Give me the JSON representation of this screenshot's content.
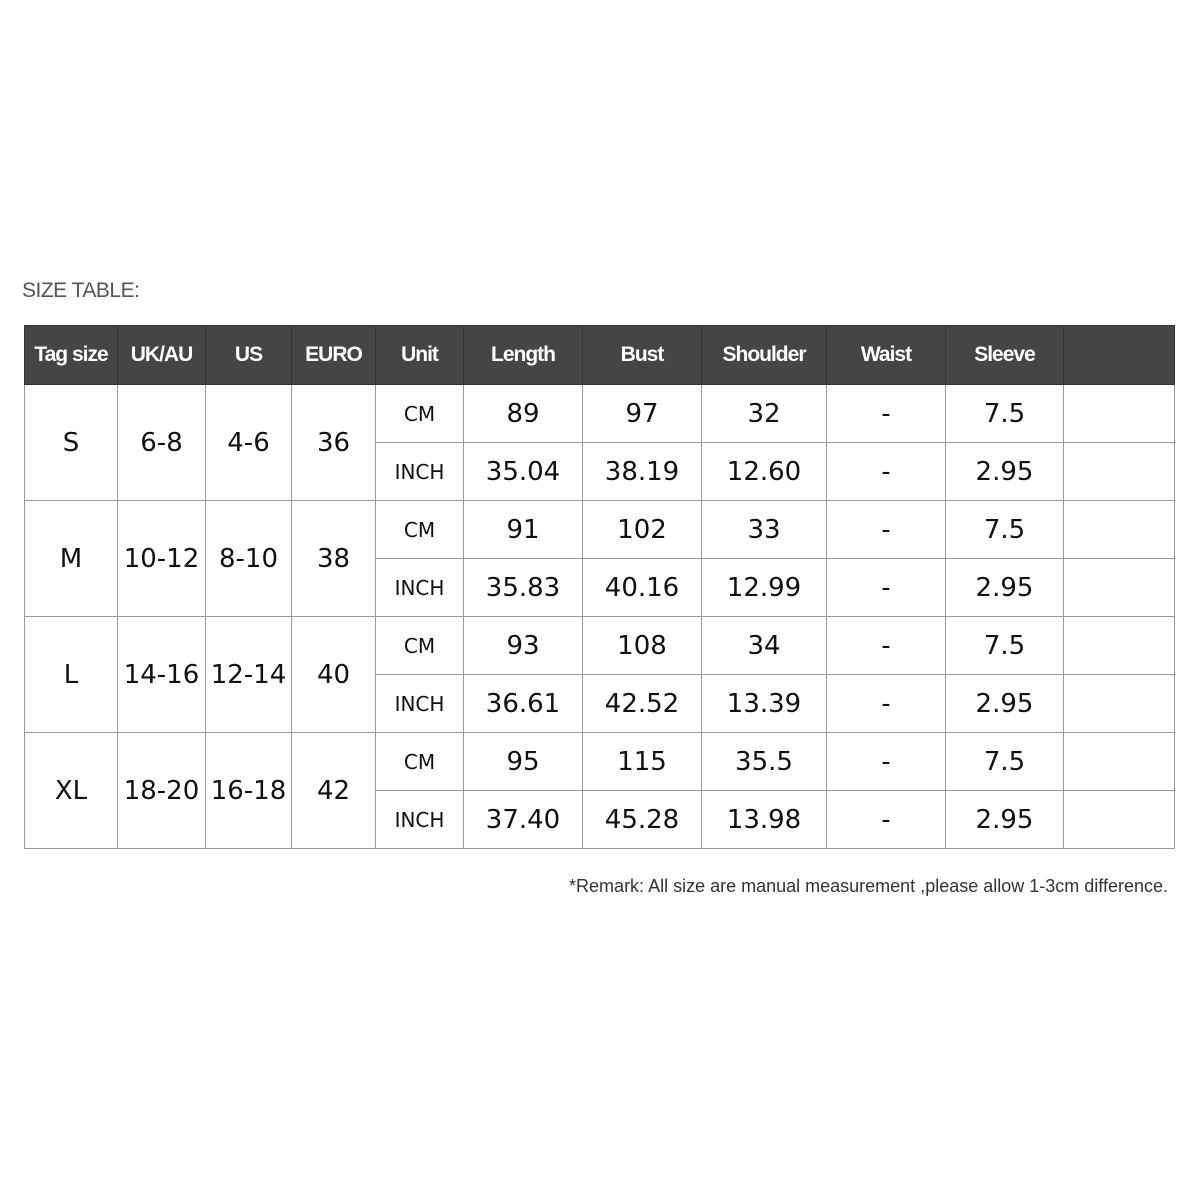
{
  "title": "SIZE TABLE:",
  "header_color": "#454545",
  "columns": [
    "Tag size",
    "UK/AU",
    "US",
    "EURO",
    "Unit",
    "Length",
    "Bust",
    "Shoulder",
    "Waist",
    "Sleeve",
    ""
  ],
  "sizes": [
    {
      "tag": "S",
      "uk": "6-8",
      "us": "4-6",
      "euro": "36",
      "rows": [
        {
          "unit": "CM",
          "length": "89",
          "bust": "97",
          "shoulder": "32",
          "waist": "-",
          "sleeve": "7.5"
        },
        {
          "unit": "INCH",
          "length": "35.04",
          "bust": "38.19",
          "shoulder": "12.60",
          "waist": "-",
          "sleeve": "2.95"
        }
      ]
    },
    {
      "tag": "M",
      "uk": "10-12",
      "us": "8-10",
      "euro": "38",
      "rows": [
        {
          "unit": "CM",
          "length": "91",
          "bust": "102",
          "shoulder": "33",
          "waist": "-",
          "sleeve": "7.5"
        },
        {
          "unit": "INCH",
          "length": "35.83",
          "bust": "40.16",
          "shoulder": "12.99",
          "waist": "-",
          "sleeve": "2.95"
        }
      ]
    },
    {
      "tag": "L",
      "uk": "14-16",
      "us": "12-14",
      "euro": "40",
      "rows": [
        {
          "unit": "CM",
          "length": "93",
          "bust": "108",
          "shoulder": "34",
          "waist": "-",
          "sleeve": "7.5"
        },
        {
          "unit": "INCH",
          "length": "36.61",
          "bust": "42.52",
          "shoulder": "13.39",
          "waist": "-",
          "sleeve": "2.95"
        }
      ]
    },
    {
      "tag": "XL",
      "uk": "18-20",
      "us": "16-18",
      "euro": "42",
      "rows": [
        {
          "unit": "CM",
          "length": "95",
          "bust": "115",
          "shoulder": "35.5",
          "waist": "-",
          "sleeve": "7.5"
        },
        {
          "unit": "INCH",
          "length": "37.40",
          "bust": "45.28",
          "shoulder": "13.98",
          "waist": "-",
          "sleeve": "2.95"
        }
      ]
    }
  ],
  "remark": "*Remark: All size are manual measurement ,please allow 1-3cm difference."
}
